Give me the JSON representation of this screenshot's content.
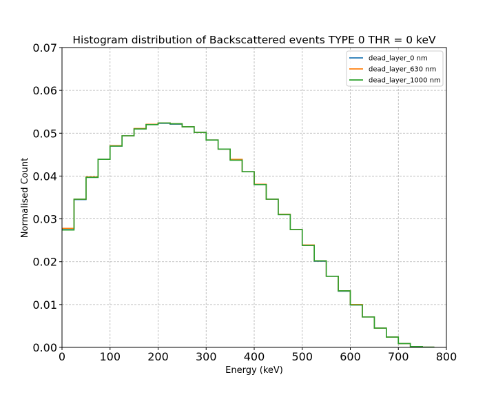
{
  "chart_data": {
    "type": "line",
    "step": "post",
    "title": "Histogram distribution of Backscattered events TYPE 0 THR = 0 keV",
    "xlabel": "Energy (keV)",
    "ylabel": "Normalised Count",
    "xlim": [
      0,
      800
    ],
    "ylim": [
      0,
      0.07
    ],
    "grid": true,
    "legend_position": "top-right",
    "x_ticks": [
      "0",
      "100",
      "200",
      "300",
      "400",
      "500",
      "600",
      "700",
      "800"
    ],
    "y_ticks": [
      "0.00",
      "0.01",
      "0.02",
      "0.03",
      "0.04",
      "0.05",
      "0.06",
      "0.07"
    ],
    "x_tick_values": [
      0,
      100,
      200,
      300,
      400,
      500,
      600,
      700,
      800
    ],
    "y_tick_values": [
      0,
      0.01,
      0.02,
      0.03,
      0.04,
      0.05,
      0.06,
      0.07
    ],
    "bin_edges": [
      0,
      25,
      50,
      75,
      100,
      125,
      150,
      175,
      200,
      225,
      250,
      275,
      300,
      325,
      350,
      375,
      400,
      425,
      450,
      475,
      500,
      525,
      550,
      575,
      600,
      625,
      650,
      675,
      700,
      725,
      750,
      775
    ],
    "series": [
      {
        "name": "dead_layer_0 nm",
        "color": "#1f77b4",
        "values": [
          0.0277,
          0.0345,
          0.0397,
          0.0439,
          0.047,
          0.0494,
          0.051,
          0.052,
          0.0523,
          0.0521,
          0.0515,
          0.0502,
          0.0484,
          0.0463,
          0.0438,
          0.041,
          0.038,
          0.0346,
          0.031,
          0.0275,
          0.0238,
          0.0201,
          0.0166,
          0.0131,
          0.0099,
          0.0071,
          0.0045,
          0.0024,
          0.0009,
          0.0002,
          5e-05
        ]
      },
      {
        "name": "dead_layer_630 nm",
        "color": "#ff7f0e",
        "values": [
          0.0278,
          0.0346,
          0.0398,
          0.0439,
          0.0471,
          0.0494,
          0.0511,
          0.0521,
          0.0524,
          0.0522,
          0.0515,
          0.0502,
          0.0484,
          0.0463,
          0.0439,
          0.041,
          0.0381,
          0.0346,
          0.0311,
          0.0275,
          0.0239,
          0.0202,
          0.0166,
          0.0132,
          0.01,
          0.0071,
          0.0045,
          0.0024,
          0.0009,
          0.0002,
          5e-05
        ]
      },
      {
        "name": "dead_layer_1000 nm",
        "color": "#2ca02c",
        "values": [
          0.0274,
          0.0346,
          0.0397,
          0.0439,
          0.047,
          0.0494,
          0.051,
          0.052,
          0.0524,
          0.0522,
          0.0515,
          0.0502,
          0.0484,
          0.0463,
          0.0437,
          0.041,
          0.038,
          0.0346,
          0.031,
          0.0275,
          0.0238,
          0.0202,
          0.0166,
          0.0132,
          0.0099,
          0.0071,
          0.0045,
          0.0024,
          0.0009,
          0.0002,
          5e-05
        ]
      }
    ]
  }
}
